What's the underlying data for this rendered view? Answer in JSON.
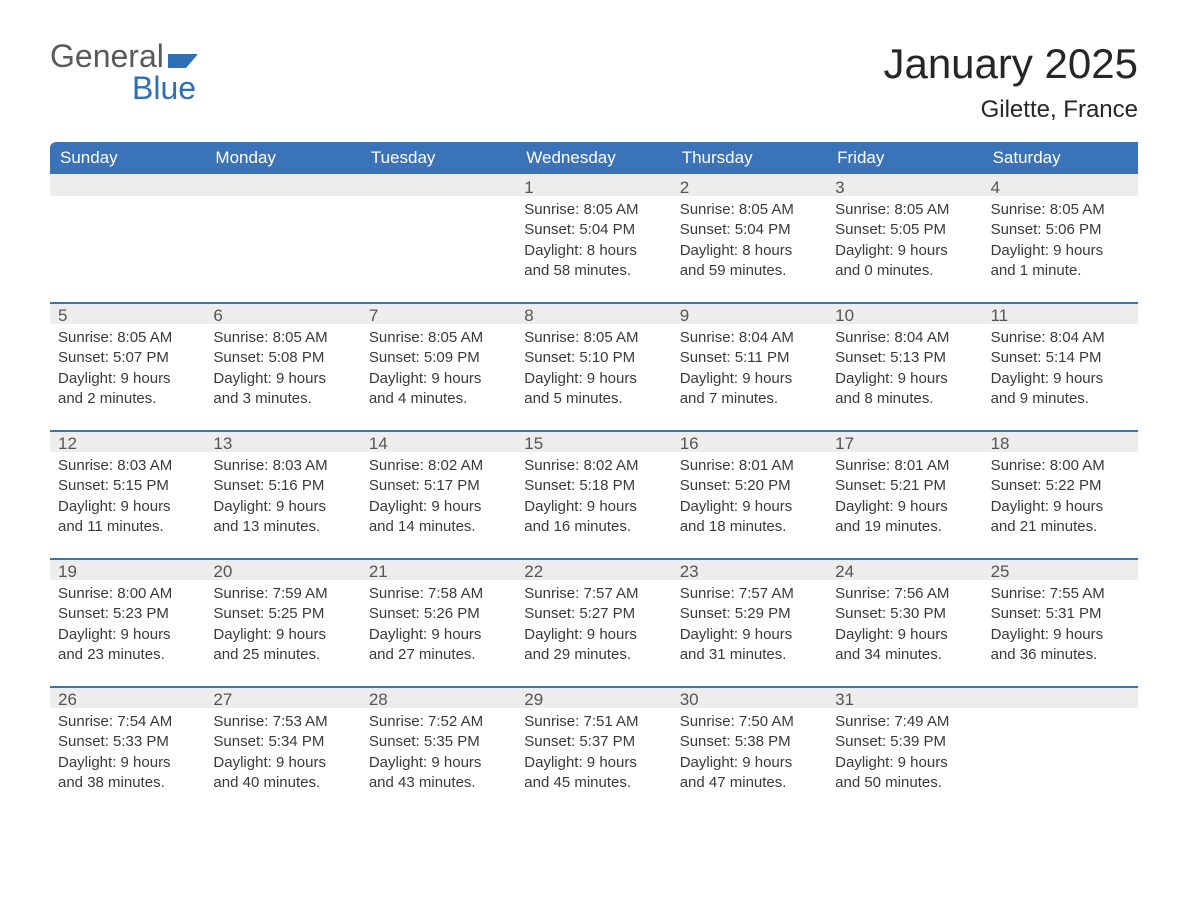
{
  "logo": {
    "word1": "General",
    "word2": "Blue",
    "word1_color": "#5a5a5a",
    "word2_color": "#2f6fb3",
    "flag_color": "#2f6fb3"
  },
  "title": "January 2025",
  "location": "Gilette, France",
  "colors": {
    "header_bg": "#3b73b9",
    "header_text": "#ffffff",
    "daybar_bg": "#ededed",
    "daybar_border": "#3b73b9",
    "body_text": "#3a3a3a",
    "page_bg": "#ffffff"
  },
  "weekdays": [
    "Sunday",
    "Monday",
    "Tuesday",
    "Wednesday",
    "Thursday",
    "Friday",
    "Saturday"
  ],
  "weeks": [
    [
      null,
      null,
      null,
      {
        "n": "1",
        "sunrise": "Sunrise: 8:05 AM",
        "sunset": "Sunset: 5:04 PM",
        "dl1": "Daylight: 8 hours",
        "dl2": "and 58 minutes."
      },
      {
        "n": "2",
        "sunrise": "Sunrise: 8:05 AM",
        "sunset": "Sunset: 5:04 PM",
        "dl1": "Daylight: 8 hours",
        "dl2": "and 59 minutes."
      },
      {
        "n": "3",
        "sunrise": "Sunrise: 8:05 AM",
        "sunset": "Sunset: 5:05 PM",
        "dl1": "Daylight: 9 hours",
        "dl2": "and 0 minutes."
      },
      {
        "n": "4",
        "sunrise": "Sunrise: 8:05 AM",
        "sunset": "Sunset: 5:06 PM",
        "dl1": "Daylight: 9 hours",
        "dl2": "and 1 minute."
      }
    ],
    [
      {
        "n": "5",
        "sunrise": "Sunrise: 8:05 AM",
        "sunset": "Sunset: 5:07 PM",
        "dl1": "Daylight: 9 hours",
        "dl2": "and 2 minutes."
      },
      {
        "n": "6",
        "sunrise": "Sunrise: 8:05 AM",
        "sunset": "Sunset: 5:08 PM",
        "dl1": "Daylight: 9 hours",
        "dl2": "and 3 minutes."
      },
      {
        "n": "7",
        "sunrise": "Sunrise: 8:05 AM",
        "sunset": "Sunset: 5:09 PM",
        "dl1": "Daylight: 9 hours",
        "dl2": "and 4 minutes."
      },
      {
        "n": "8",
        "sunrise": "Sunrise: 8:05 AM",
        "sunset": "Sunset: 5:10 PM",
        "dl1": "Daylight: 9 hours",
        "dl2": "and 5 minutes."
      },
      {
        "n": "9",
        "sunrise": "Sunrise: 8:04 AM",
        "sunset": "Sunset: 5:11 PM",
        "dl1": "Daylight: 9 hours",
        "dl2": "and 7 minutes."
      },
      {
        "n": "10",
        "sunrise": "Sunrise: 8:04 AM",
        "sunset": "Sunset: 5:13 PM",
        "dl1": "Daylight: 9 hours",
        "dl2": "and 8 minutes."
      },
      {
        "n": "11",
        "sunrise": "Sunrise: 8:04 AM",
        "sunset": "Sunset: 5:14 PM",
        "dl1": "Daylight: 9 hours",
        "dl2": "and 9 minutes."
      }
    ],
    [
      {
        "n": "12",
        "sunrise": "Sunrise: 8:03 AM",
        "sunset": "Sunset: 5:15 PM",
        "dl1": "Daylight: 9 hours",
        "dl2": "and 11 minutes."
      },
      {
        "n": "13",
        "sunrise": "Sunrise: 8:03 AM",
        "sunset": "Sunset: 5:16 PM",
        "dl1": "Daylight: 9 hours",
        "dl2": "and 13 minutes."
      },
      {
        "n": "14",
        "sunrise": "Sunrise: 8:02 AM",
        "sunset": "Sunset: 5:17 PM",
        "dl1": "Daylight: 9 hours",
        "dl2": "and 14 minutes."
      },
      {
        "n": "15",
        "sunrise": "Sunrise: 8:02 AM",
        "sunset": "Sunset: 5:18 PM",
        "dl1": "Daylight: 9 hours",
        "dl2": "and 16 minutes."
      },
      {
        "n": "16",
        "sunrise": "Sunrise: 8:01 AM",
        "sunset": "Sunset: 5:20 PM",
        "dl1": "Daylight: 9 hours",
        "dl2": "and 18 minutes."
      },
      {
        "n": "17",
        "sunrise": "Sunrise: 8:01 AM",
        "sunset": "Sunset: 5:21 PM",
        "dl1": "Daylight: 9 hours",
        "dl2": "and 19 minutes."
      },
      {
        "n": "18",
        "sunrise": "Sunrise: 8:00 AM",
        "sunset": "Sunset: 5:22 PM",
        "dl1": "Daylight: 9 hours",
        "dl2": "and 21 minutes."
      }
    ],
    [
      {
        "n": "19",
        "sunrise": "Sunrise: 8:00 AM",
        "sunset": "Sunset: 5:23 PM",
        "dl1": "Daylight: 9 hours",
        "dl2": "and 23 minutes."
      },
      {
        "n": "20",
        "sunrise": "Sunrise: 7:59 AM",
        "sunset": "Sunset: 5:25 PM",
        "dl1": "Daylight: 9 hours",
        "dl2": "and 25 minutes."
      },
      {
        "n": "21",
        "sunrise": "Sunrise: 7:58 AM",
        "sunset": "Sunset: 5:26 PM",
        "dl1": "Daylight: 9 hours",
        "dl2": "and 27 minutes."
      },
      {
        "n": "22",
        "sunrise": "Sunrise: 7:57 AM",
        "sunset": "Sunset: 5:27 PM",
        "dl1": "Daylight: 9 hours",
        "dl2": "and 29 minutes."
      },
      {
        "n": "23",
        "sunrise": "Sunrise: 7:57 AM",
        "sunset": "Sunset: 5:29 PM",
        "dl1": "Daylight: 9 hours",
        "dl2": "and 31 minutes."
      },
      {
        "n": "24",
        "sunrise": "Sunrise: 7:56 AM",
        "sunset": "Sunset: 5:30 PM",
        "dl1": "Daylight: 9 hours",
        "dl2": "and 34 minutes."
      },
      {
        "n": "25",
        "sunrise": "Sunrise: 7:55 AM",
        "sunset": "Sunset: 5:31 PM",
        "dl1": "Daylight: 9 hours",
        "dl2": "and 36 minutes."
      }
    ],
    [
      {
        "n": "26",
        "sunrise": "Sunrise: 7:54 AM",
        "sunset": "Sunset: 5:33 PM",
        "dl1": "Daylight: 9 hours",
        "dl2": "and 38 minutes."
      },
      {
        "n": "27",
        "sunrise": "Sunrise: 7:53 AM",
        "sunset": "Sunset: 5:34 PM",
        "dl1": "Daylight: 9 hours",
        "dl2": "and 40 minutes."
      },
      {
        "n": "28",
        "sunrise": "Sunrise: 7:52 AM",
        "sunset": "Sunset: 5:35 PM",
        "dl1": "Daylight: 9 hours",
        "dl2": "and 43 minutes."
      },
      {
        "n": "29",
        "sunrise": "Sunrise: 7:51 AM",
        "sunset": "Sunset: 5:37 PM",
        "dl1": "Daylight: 9 hours",
        "dl2": "and 45 minutes."
      },
      {
        "n": "30",
        "sunrise": "Sunrise: 7:50 AM",
        "sunset": "Sunset: 5:38 PM",
        "dl1": "Daylight: 9 hours",
        "dl2": "and 47 minutes."
      },
      {
        "n": "31",
        "sunrise": "Sunrise: 7:49 AM",
        "sunset": "Sunset: 5:39 PM",
        "dl1": "Daylight: 9 hours",
        "dl2": "and 50 minutes."
      },
      null
    ]
  ]
}
